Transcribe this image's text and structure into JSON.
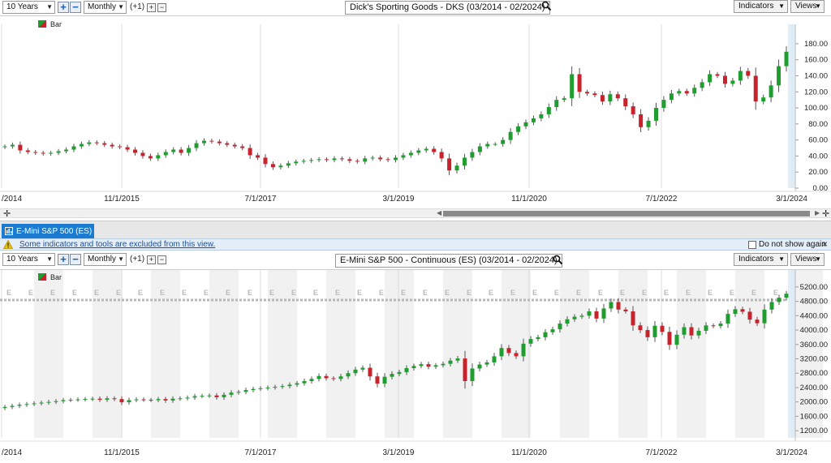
{
  "top": {
    "range": "10 Years",
    "interval": "Monthly",
    "offset": "(+1)",
    "title": "Dick's Sporting Goods - DKS (03/2014 - 02/2024)",
    "indicators": "Indicators",
    "views": "Views",
    "legend": "Bar"
  },
  "bottom": {
    "tab_label": "E-Mini S&P 500 (ES)",
    "warning": "Some indicators and tools are excluded from this view.",
    "do_not_show": "Do not show again",
    "range": "10 Years",
    "interval": "Monthly",
    "offset": "(+1)",
    "title": "E-Mini S&P 500 - Continuous (ES) (03/2014 - 02/2024)",
    "indicators": "Indicators",
    "views": "Views",
    "legend": "Bar",
    "event_marker": "E"
  },
  "colors": {
    "up": "#1f9e2f",
    "down": "#c8232c",
    "accent": "#1a7bd0"
  },
  "chart_data": [
    {
      "type": "candlestick",
      "title": "Dick's Sporting Goods - DKS (03/2014 - 02/2024)",
      "x_tick_labels": [
        "/2014",
        "11/1/2015",
        "7/1/2017",
        "3/1/2019",
        "11/1/2020",
        "7/1/2022",
        "3/1/2024"
      ],
      "y_tick_labels": [
        "0.00",
        "20.00",
        "40.00",
        "60.00",
        "80.00",
        "100.00",
        "120.00",
        "140.00",
        "160.00",
        "180.00"
      ],
      "ylim": [
        0,
        190
      ],
      "monthly_close": [
        52,
        54,
        47,
        45,
        44,
        43,
        44,
        46,
        48,
        52,
        55,
        57,
        56,
        54,
        52,
        51,
        48,
        44,
        40,
        37,
        41,
        45,
        48,
        44,
        50,
        56,
        59,
        58,
        56,
        54,
        52,
        50,
        41,
        38,
        30,
        26,
        28,
        31,
        33,
        34,
        35,
        36,
        35,
        37,
        36,
        34,
        33,
        37,
        38,
        36,
        35,
        38,
        41,
        44,
        47,
        49,
        45,
        37,
        22,
        28,
        38,
        45,
        52,
        55,
        55,
        60,
        70,
        77,
        82,
        87,
        92,
        101,
        110,
        112,
        142,
        120,
        118,
        116,
        108,
        117,
        112,
        102,
        92,
        76,
        84,
        100,
        110,
        118,
        121,
        118,
        125,
        132,
        142,
        140,
        130,
        134,
        146,
        140,
        108,
        113,
        128,
        152,
        170
      ]
    },
    {
      "type": "candlestick",
      "title": "E-Mini S&P 500 - Continuous (ES) (03/2014 - 02/2024)",
      "x_tick_labels": [
        "/2014",
        "11/1/2015",
        "7/1/2017",
        "3/1/2019",
        "11/1/2020",
        "7/1/2022",
        "3/1/2024"
      ],
      "y_tick_labels": [
        "1200.00",
        "1600.00",
        "2000.00",
        "2400.00",
        "2800.00",
        "3200.00",
        "3600.00",
        "4000.00",
        "4400.00",
        "4800.00",
        "5200.00"
      ],
      "ylim": [
        1000,
        5400
      ],
      "monthly_close": [
        1860,
        1890,
        1920,
        1940,
        1960,
        1980,
        2000,
        2020,
        2050,
        2060,
        2070,
        2080,
        2090,
        2060,
        2100,
        2080,
        1990,
        2050,
        2070,
        2060,
        2050,
        2080,
        2040,
        2090,
        2100,
        2120,
        2160,
        2170,
        2180,
        2130,
        2200,
        2260,
        2280,
        2330,
        2360,
        2380,
        2400,
        2420,
        2440,
        2480,
        2520,
        2580,
        2640,
        2720,
        2660,
        2640,
        2710,
        2800,
        2900,
        2950,
        2710,
        2510,
        2700,
        2780,
        2830,
        2940,
        3000,
        3050,
        2980,
        3020,
        3060,
        3150,
        3210,
        2580,
        2930,
        3040,
        3100,
        3270,
        3500,
        3360,
        3270,
        3620,
        3750,
        3800,
        3940,
        4020,
        4180,
        4300,
        4370,
        4400,
        4520,
        4320,
        4600,
        4780,
        4570,
        4520,
        4130,
        4000,
        3800,
        4120,
        3950,
        3590,
        3870,
        4080,
        3850,
        3980,
        4130,
        4110,
        4180,
        4450,
        4580,
        4510,
        4290,
        4190,
        4570,
        4780,
        4900,
        5010
      ]
    }
  ]
}
